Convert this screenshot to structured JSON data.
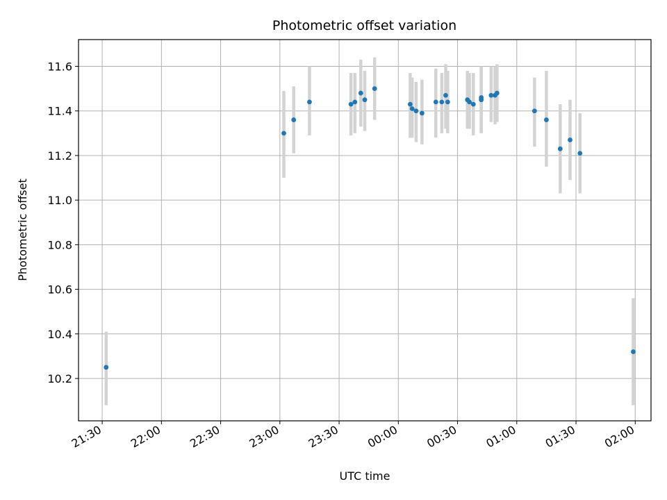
{
  "chart_data": {
    "type": "scatter",
    "title": "Photometric offset variation",
    "xlabel": "UTC time",
    "ylabel": "Photometric offset",
    "grid": true,
    "xlim": [
      "21:18",
      "02:08"
    ],
    "ylim": [
      10.01,
      11.72
    ],
    "x_tick_labels": [
      "21:30",
      "22:00",
      "22:30",
      "23:00",
      "23:30",
      "00:00",
      "00:30",
      "01:00",
      "01:30",
      "02:00"
    ],
    "y_tick_labels": [
      "10.2",
      "10.4",
      "10.6",
      "10.8",
      "11.0",
      "11.2",
      "11.4",
      "11.6"
    ],
    "y_ticks": [
      10.2,
      10.4,
      10.6,
      10.8,
      11.0,
      11.2,
      11.4,
      11.6
    ],
    "colors": {
      "points": "#1f77b4",
      "error_bars": "#d3d3d3",
      "grid": "#b0b0b0"
    },
    "series": [
      {
        "points": [
          {
            "x": "21:32",
            "y": 10.25,
            "err_low": 10.08,
            "err_high": 10.41
          },
          {
            "x": "23:02",
            "y": 11.3,
            "err_low": 11.1,
            "err_high": 11.49
          },
          {
            "x": "23:07",
            "y": 11.36,
            "err_low": 11.21,
            "err_high": 11.51
          },
          {
            "x": "23:15",
            "y": 11.44,
            "err_low": 11.29,
            "err_high": 11.6
          },
          {
            "x": "23:36",
            "y": 11.43,
            "err_low": 11.29,
            "err_high": 11.57
          },
          {
            "x": "23:38",
            "y": 11.44,
            "err_low": 11.3,
            "err_high": 11.57
          },
          {
            "x": "23:41",
            "y": 11.48,
            "err_low": 11.33,
            "err_high": 11.63
          },
          {
            "x": "23:43",
            "y": 11.45,
            "err_low": 11.31,
            "err_high": 11.58
          },
          {
            "x": "23:48",
            "y": 11.5,
            "err_low": 11.36,
            "err_high": 11.64
          },
          {
            "x": "00:06",
            "y": 11.43,
            "err_low": 11.28,
            "err_high": 11.57
          },
          {
            "x": "00:07",
            "y": 11.41,
            "err_low": 11.28,
            "err_high": 11.55
          },
          {
            "x": "00:09",
            "y": 11.4,
            "err_low": 11.26,
            "err_high": 11.53
          },
          {
            "x": "00:12",
            "y": 11.39,
            "err_low": 11.25,
            "err_high": 11.54
          },
          {
            "x": "00:19",
            "y": 11.44,
            "err_low": 11.28,
            "err_high": 11.59
          },
          {
            "x": "00:22",
            "y": 11.44,
            "err_low": 11.3,
            "err_high": 11.57
          },
          {
            "x": "00:24",
            "y": 11.47,
            "err_low": 11.32,
            "err_high": 11.61
          },
          {
            "x": "00:25",
            "y": 11.44,
            "err_low": 11.3,
            "err_high": 11.58
          },
          {
            "x": "00:35",
            "y": 11.45,
            "err_low": 11.32,
            "err_high": 11.58
          },
          {
            "x": "00:36",
            "y": 11.44,
            "err_low": 11.32,
            "err_high": 11.57
          },
          {
            "x": "00:38",
            "y": 11.43,
            "err_low": 11.29,
            "err_high": 11.57
          },
          {
            "x": "00:42",
            "y": 11.45,
            "err_low": 11.3,
            "err_high": 11.6
          },
          {
            "x": "00:42",
            "y": 11.46,
            "err_low": 11.31,
            "err_high": 11.6
          },
          {
            "x": "00:47",
            "y": 11.47,
            "err_low": 11.35,
            "err_high": 11.6
          },
          {
            "x": "00:49",
            "y": 11.47,
            "err_low": 11.34,
            "err_high": 11.6
          },
          {
            "x": "00:50",
            "y": 11.48,
            "err_low": 11.35,
            "err_high": 11.61
          },
          {
            "x": "01:09",
            "y": 11.4,
            "err_low": 11.24,
            "err_high": 11.55
          },
          {
            "x": "01:15",
            "y": 11.36,
            "err_low": 11.15,
            "err_high": 11.58
          },
          {
            "x": "01:22",
            "y": 11.23,
            "err_low": 11.03,
            "err_high": 11.43
          },
          {
            "x": "01:27",
            "y": 11.27,
            "err_low": 11.09,
            "err_high": 11.45
          },
          {
            "x": "01:32",
            "y": 11.21,
            "err_low": 11.03,
            "err_high": 11.39
          },
          {
            "x": "01:59",
            "y": 10.32,
            "err_low": 10.08,
            "err_high": 10.56
          }
        ]
      }
    ]
  }
}
